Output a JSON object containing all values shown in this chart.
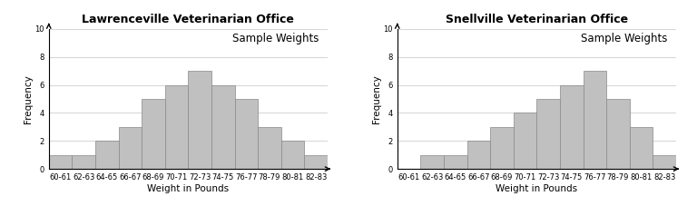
{
  "left_title": "Lawrenceville Veterinarian Office",
  "right_title": "Snellville Veterinarian Office",
  "subplot_title": "Sample Weights",
  "xlabel": "Weight in Pounds",
  "ylabel": "Frequency",
  "categories": [
    "60-61",
    "62-63",
    "64-65",
    "66-67",
    "68-69",
    "70-71",
    "72-73",
    "74-75",
    "76-77",
    "78-79",
    "80-81",
    "82-83"
  ],
  "left_values": [
    1,
    1,
    2,
    3,
    5,
    6,
    7,
    6,
    5,
    3,
    2,
    1
  ],
  "right_values": [
    0,
    1,
    1,
    2,
    3,
    4,
    5,
    6,
    7,
    5,
    3,
    1
  ],
  "ylim": [
    0,
    10
  ],
  "yticks": [
    0,
    2,
    4,
    6,
    8,
    10
  ],
  "bar_color": "#c0c0c0",
  "bar_edge_color": "#888888",
  "plot_bg_color": "#ffffff",
  "fig_bg_color": "#ffffff",
  "grid_color": "#d8d8d8",
  "title_fontsize": 9,
  "subplot_title_fontsize": 8.5,
  "axis_label_fontsize": 7.5,
  "tick_fontsize": 6.0
}
